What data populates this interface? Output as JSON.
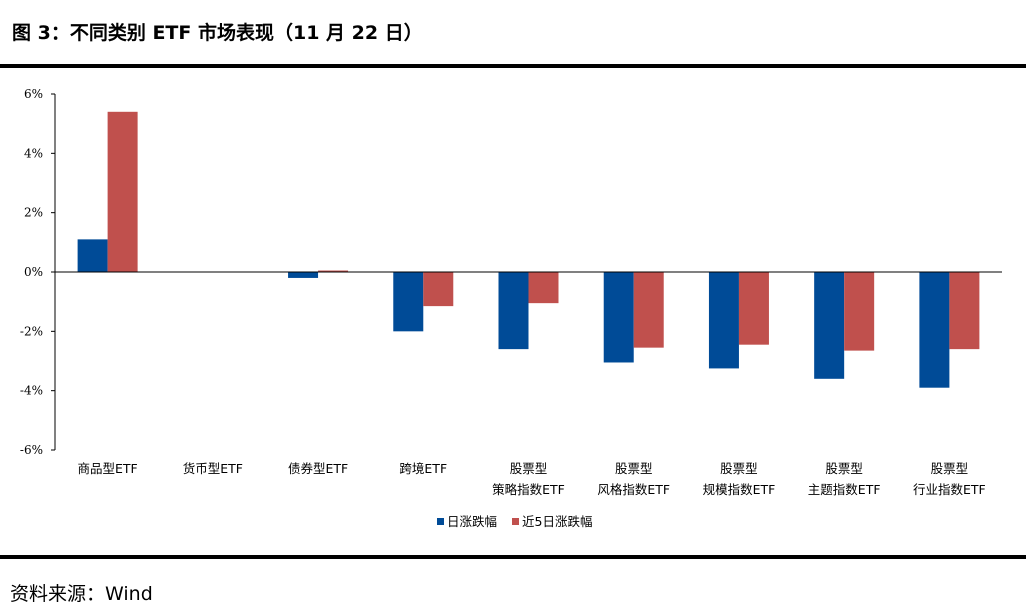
{
  "figure_title": "图 3：不同类别 ETF 市场表现（11 月 22 日）",
  "source": "资料来源：Wind",
  "colors": {
    "series_1": "#004B97",
    "series_2": "#C0504D"
  },
  "chart_data": {
    "type": "bar",
    "categories": [
      [
        "商品型ETF"
      ],
      [
        "货币型ETF"
      ],
      [
        "债券型ETF"
      ],
      [
        "跨境ETF"
      ],
      [
        "股票型",
        "策略指数ETF"
      ],
      [
        "股票型",
        "风格指数ETF"
      ],
      [
        "股票型",
        "规模指数ETF"
      ],
      [
        "股票型",
        "主题指数ETF"
      ],
      [
        "股票型",
        "行业指数ETF"
      ]
    ],
    "series": [
      {
        "name": "日涨跌幅",
        "values": [
          1.1,
          0.0,
          -0.2,
          -2.0,
          -2.6,
          -3.05,
          -3.25,
          -3.6,
          -3.9
        ]
      },
      {
        "name": "近5日涨跌幅",
        "values": [
          5.4,
          0.0,
          0.05,
          -1.15,
          -1.05,
          -2.55,
          -2.45,
          -2.65,
          -2.6
        ]
      }
    ],
    "ylim": [
      -6,
      6
    ],
    "yticks": [
      "6%",
      "4%",
      "2%",
      "0%",
      "-2%",
      "-4%",
      "-6%"
    ],
    "ytick_values": [
      6,
      4,
      2,
      0,
      -2,
      -4,
      -6
    ],
    "legend": "bottom-center",
    "grid": false
  }
}
